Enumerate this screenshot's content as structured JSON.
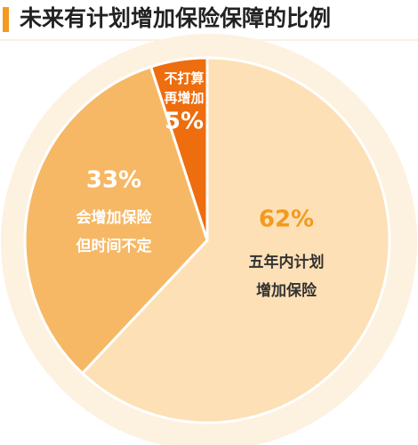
{
  "chart_data": {
    "type": "pie",
    "title": "未来有计划增加保险保障的比例",
    "categories": [
      "五年内计划增加保险",
      "会增加保险但时间不定",
      "不打算再增加"
    ],
    "values": [
      62,
      33,
      5
    ],
    "value_labels": [
      "62%",
      "33%",
      "5%"
    ],
    "colors": [
      "#fde0b5",
      "#f6b865",
      "#ee6d0e"
    ]
  }
}
